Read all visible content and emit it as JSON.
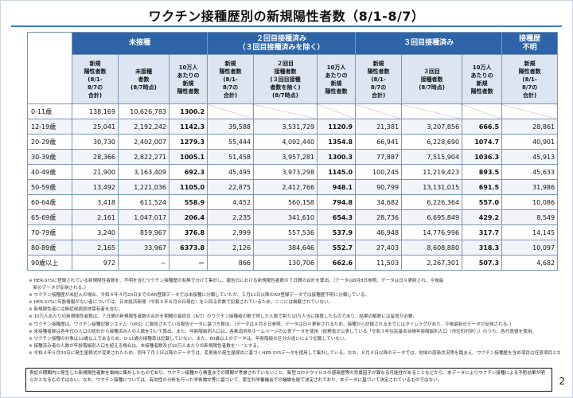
{
  "title": "ワクチン接種歴別の新規陽性者数（8/1-8/7）",
  "groups": {
    "unvaccinated": "未接種",
    "two_doses_l1": "２回目接種済み",
    "two_doses_l2": "（３回目接種済みを除く）",
    "three_doses": "３回目接種済み",
    "unknown_l1": "接種歴",
    "unknown_l2": "不明"
  },
  "subheaders": {
    "new_cases": [
      "新規",
      "陽性者数",
      "(8/1-",
      "8/7の",
      "合計)"
    ],
    "unvax_count": [
      "未接種",
      "者数",
      "(8/7時点)"
    ],
    "per100k": [
      "10万人",
      "あたりの",
      "新規",
      "陽性者数"
    ],
    "two_count": [
      "２回目",
      "接種者数",
      "(３回目接種",
      "者数を除く)",
      "(8/7時点)"
    ],
    "three_count": [
      "３回目",
      "接種者数",
      "(8/7時点)"
    ]
  },
  "rows": [
    {
      "age": "0-11歳",
      "u_cases": "138,169",
      "u_pop": "10,626,783",
      "u_rate": "1300.2",
      "t_cases": "",
      "t_pop": "",
      "t_rate": "",
      "h_cases": "",
      "h_pop": "",
      "h_rate": "",
      "unknown": ""
    },
    {
      "age": "12-19歳",
      "u_cases": "25,041",
      "u_pop": "2,192,242",
      "u_rate": "1142.3",
      "t_cases": "39,588",
      "t_pop": "3,531,729",
      "t_rate": "1120.9",
      "h_cases": "21,381",
      "h_pop": "3,207,856",
      "h_rate": "666.5",
      "unknown": "28,861"
    },
    {
      "age": "20-29歳",
      "u_cases": "30,730",
      "u_pop": "2,402,007",
      "u_rate": "1279.3",
      "t_cases": "55,444",
      "t_pop": "4,092,440",
      "t_rate": "1354.8",
      "h_cases": "66,941",
      "h_pop": "6,228,690",
      "h_rate": "1074.7",
      "unknown": "40,901"
    },
    {
      "age": "30-39歳",
      "u_cases": "28,366",
      "u_pop": "2,822,271",
      "u_rate": "1005.1",
      "t_cases": "51,458",
      "t_pop": "3,957,281",
      "t_rate": "1300.3",
      "h_cases": "77,887",
      "h_pop": "7,515,904",
      "h_rate": "1036.3",
      "unknown": "45,913"
    },
    {
      "age": "40-49歳",
      "u_cases": "21,900",
      "u_pop": "3,163,409",
      "u_rate": "692.3",
      "t_cases": "45,495",
      "t_pop": "3,973,298",
      "t_rate": "1145.0",
      "h_cases": "100,245",
      "h_pop": "11,219,423",
      "h_rate": "893.5",
      "unknown": "45,633"
    },
    {
      "age": "50-59歳",
      "u_cases": "13,492",
      "u_pop": "1,221,036",
      "u_rate": "1105.0",
      "t_cases": "22,875",
      "t_pop": "2,412,766",
      "t_rate": "948.1",
      "h_cases": "90,799",
      "h_pop": "13,131,015",
      "h_rate": "691.5",
      "unknown": "31,986"
    },
    {
      "age": "60-64歳",
      "u_cases": "3,418",
      "u_pop": "611,524",
      "u_rate": "558.9",
      "t_cases": "4,452",
      "t_pop": "560,158",
      "t_rate": "794.8",
      "h_cases": "34,682",
      "h_pop": "6,226,364",
      "h_rate": "557.0",
      "unknown": "10,086"
    },
    {
      "age": "65-69歳",
      "u_cases": "2,161",
      "u_pop": "1,047,017",
      "u_rate": "206.4",
      "t_cases": "2,235",
      "t_pop": "341,610",
      "t_rate": "654.3",
      "h_cases": "28,736",
      "h_pop": "6,695,849",
      "h_rate": "429.2",
      "unknown": "8,549"
    },
    {
      "age": "70-79歳",
      "u_cases": "3,240",
      "u_pop": "859,967",
      "u_rate": "376.8",
      "t_cases": "2,999",
      "t_pop": "557,536",
      "t_rate": "537.9",
      "h_cases": "46,948",
      "h_pop": "14,776,996",
      "h_rate": "317.7",
      "unknown": "14,145"
    },
    {
      "age": "80-89歳",
      "u_cases": "2,165",
      "u_pop": "33,967",
      "u_rate": "6373.8",
      "t_cases": "2,126",
      "t_pop": "384,646",
      "t_rate": "552.7",
      "h_cases": "27,403",
      "h_pop": "8,608,880",
      "h_rate": "318.3",
      "unknown": "10,097"
    },
    {
      "age": "90歳以上",
      "u_cases": "972",
      "u_pop": "－",
      "u_rate": "－",
      "t_cases": "866",
      "t_pop": "130,706",
      "t_rate": "662.6",
      "h_cases": "11,503",
      "h_pop": "2,267,301",
      "h_rate": "507.3",
      "unknown": "4,682"
    }
  ],
  "notes": [
    "※ HER-SYSに登録されている新規陽性者数を、不明を含むワクチン接種歴の有無で分けて集計し、報告日における新規陽性者数の７日間の合計を算出。（データは8月8日参照、データは日々更新され、今後最",
    "　新のデータが反映される。）",
    "※ ワクチン接種歴が未記入の場合、令和４年４月20日までのAD登録データでは未接種に分類していたが、５月11日以降のAD登録データでは接種歴不明に分類している。",
    "※ HER-SYSに年齢情報がない者については、日本経済新聞（令和４年８月８日現在）を上回る件数で記載されているため、ここには掲載されていない。",
    "※ 新規陽性者には無症候病原体保有者を含む。",
    "※ 10万人あたりの新規陽性者数は、７日間の新規陽性者数の合計を期間の最終日（8/7）のワクチン接種者の数で除した人数で割り10万人当に換算したものであり、結果の解釈には留意が必要。",
    "※ ワクチン接種歴は、ワクチン接種記録システム（VRS）に報告されている報告データに基づき算出。（データは８月８日参照、データは日々更新されるため、接種から記録されるまでにはタイムラグがあり、今後最新のデータが反映される。）",
    "※ 未接種者数は各年代の人口の総計から接種済み人の人数を引いて算出。また、年齢階級別人口は、各都道府県ホームページの公表データを使用（総務省が公表している「令和３年住民基本台帳年齢階級別人口（市区町村別）」）のうち、各代表値を使用。",
    "※ ワクチン接種の対象は12歳以上であるため、0-11歳の接種率は記載していない。また、80歳以上のデータは、年齢階級の区分の違いにより記載していない。",
    "※ 接種済み者の人数が年齢階級別人口を超える場合は、未接種者数及び10万人あたりの新規陽性者数を\"－\"とする。",
    "※ 令和４年６月30日に発生届様式が変更されたため、同年７月１日以降のデータでは、変更後の発生届様式に基づくHER-SYSデータを使用して集計している。なお、８月４日以降のデータでは、地域の感染状況等を踏まえ、ワクチン接種歴を含め項目は任意項目となった。"
  ],
  "disclaimer": "表記の期間内に発生した新規陽性者数を単純に集計したものであり、ワクチン接種から検査までの期間が考慮されていないこと、新型コロナウイルスの感染歴等の背景因子が異なる可能性があることなどから、本データによりワクチン接種による予防効果が明らかとなるものではない。なお、ワクチン接種については、有効性の分析を行った学術論文等に基づいて、厚生科学審議会での議論を経て決定されており、本データに基づいて決定されているものではない。",
  "page_number": "2"
}
